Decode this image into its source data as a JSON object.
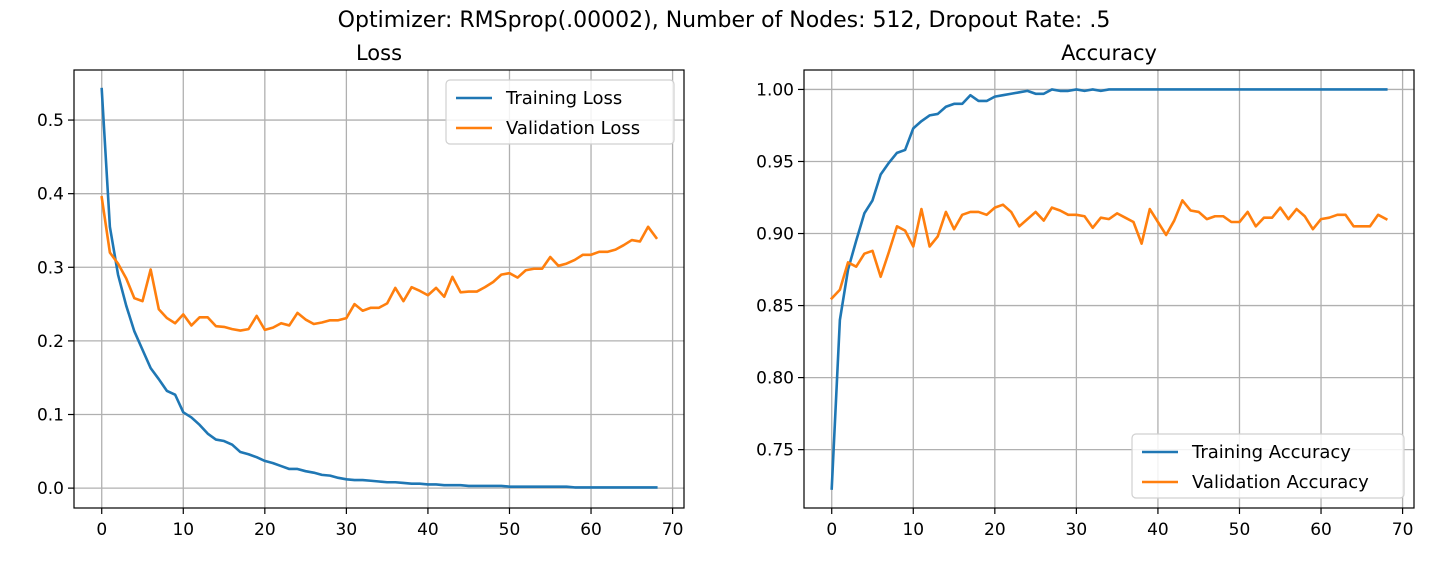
{
  "figure": {
    "suptitle": "Optimizer: RMSprop(.00002), Number of Nodes: 512, Dropout Rate: .5"
  },
  "chart_data": [
    {
      "type": "line",
      "title": "Loss",
      "xlabel": "",
      "ylabel": "",
      "xlim": [
        -3.4,
        71.4
      ],
      "ylim": [
        -0.027,
        0.568
      ],
      "xticks": [
        0,
        10,
        20,
        30,
        40,
        50,
        60,
        70
      ],
      "yticks": [
        0.0,
        0.1,
        0.2,
        0.3,
        0.4,
        0.5
      ],
      "ytick_labels": [
        "0.0",
        "0.1",
        "0.2",
        "0.3",
        "0.4",
        "0.5"
      ],
      "grid": true,
      "legend_position": "upper right",
      "series": [
        {
          "name": "Training Loss",
          "color": "#1f77b4",
          "values": [
            0.542,
            0.355,
            0.29,
            0.248,
            0.213,
            0.188,
            0.163,
            0.148,
            0.132,
            0.127,
            0.103,
            0.096,
            0.086,
            0.074,
            0.066,
            0.064,
            0.059,
            0.049,
            0.046,
            0.042,
            0.037,
            0.034,
            0.03,
            0.026,
            0.026,
            0.023,
            0.021,
            0.018,
            0.017,
            0.014,
            0.012,
            0.011,
            0.011,
            0.01,
            0.009,
            0.008,
            0.008,
            0.007,
            0.006,
            0.006,
            0.005,
            0.005,
            0.004,
            0.004,
            0.004,
            0.003,
            0.003,
            0.003,
            0.003,
            0.003,
            0.002,
            0.002,
            0.002,
            0.002,
            0.002,
            0.002,
            0.002,
            0.002,
            0.001,
            0.001,
            0.001,
            0.001,
            0.001,
            0.001,
            0.001,
            0.001,
            0.001,
            0.001,
            0.001
          ]
        },
        {
          "name": "Validation Loss",
          "color": "#ff7f0e",
          "values": [
            0.395,
            0.32,
            0.305,
            0.285,
            0.258,
            0.254,
            0.297,
            0.243,
            0.231,
            0.224,
            0.236,
            0.221,
            0.232,
            0.232,
            0.22,
            0.219,
            0.216,
            0.214,
            0.216,
            0.234,
            0.215,
            0.218,
            0.224,
            0.221,
            0.238,
            0.229,
            0.223,
            0.225,
            0.228,
            0.228,
            0.231,
            0.25,
            0.241,
            0.245,
            0.245,
            0.251,
            0.272,
            0.254,
            0.273,
            0.268,
            0.262,
            0.272,
            0.26,
            0.287,
            0.266,
            0.267,
            0.267,
            0.273,
            0.28,
            0.29,
            0.292,
            0.286,
            0.296,
            0.298,
            0.298,
            0.314,
            0.302,
            0.305,
            0.31,
            0.317,
            0.317,
            0.321,
            0.321,
            0.324,
            0.33,
            0.337,
            0.335,
            0.355,
            0.34
          ]
        }
      ]
    },
    {
      "type": "line",
      "title": "Accuracy",
      "xlabel": "",
      "ylabel": "",
      "xlim": [
        -3.4,
        71.4
      ],
      "ylim": [
        0.7095,
        1.0135
      ],
      "xticks": [
        0,
        10,
        20,
        30,
        40,
        50,
        60,
        70
      ],
      "yticks": [
        0.75,
        0.8,
        0.85,
        0.9,
        0.95,
        1.0
      ],
      "ytick_labels": [
        "0.75",
        "0.80",
        "0.85",
        "0.90",
        "0.95",
        "1.00"
      ],
      "grid": true,
      "legend_position": "lower right",
      "series": [
        {
          "name": "Training Accuracy",
          "color": "#1f77b4",
          "values": [
            0.723,
            0.84,
            0.875,
            0.895,
            0.914,
            0.923,
            0.941,
            0.949,
            0.956,
            0.958,
            0.973,
            0.978,
            0.982,
            0.983,
            0.988,
            0.99,
            0.99,
            0.996,
            0.992,
            0.992,
            0.995,
            0.996,
            0.997,
            0.998,
            0.999,
            0.997,
            0.997,
            1.0,
            0.999,
            0.999,
            1.0,
            0.999,
            1.0,
            0.999,
            1.0,
            1.0,
            1.0,
            1.0,
            1.0,
            1.0,
            1.0,
            1.0,
            1.0,
            1.0,
            1.0,
            1.0,
            1.0,
            1.0,
            1.0,
            1.0,
            1.0,
            1.0,
            1.0,
            1.0,
            1.0,
            1.0,
            1.0,
            1.0,
            1.0,
            1.0,
            1.0,
            1.0,
            1.0,
            1.0,
            1.0,
            1.0,
            1.0,
            1.0,
            1.0
          ]
        },
        {
          "name": "Validation Accuracy",
          "color": "#ff7f0e",
          "values": [
            0.855,
            0.861,
            0.88,
            0.877,
            0.886,
            0.888,
            0.87,
            0.887,
            0.905,
            0.902,
            0.891,
            0.917,
            0.891,
            0.898,
            0.915,
            0.903,
            0.913,
            0.915,
            0.915,
            0.913,
            0.918,
            0.92,
            0.915,
            0.905,
            0.91,
            0.915,
            0.909,
            0.918,
            0.916,
            0.913,
            0.913,
            0.912,
            0.904,
            0.911,
            0.91,
            0.914,
            0.911,
            0.908,
            0.893,
            0.917,
            0.908,
            0.899,
            0.909,
            0.923,
            0.916,
            0.915,
            0.91,
            0.912,
            0.912,
            0.908,
            0.908,
            0.915,
            0.905,
            0.911,
            0.911,
            0.918,
            0.91,
            0.917,
            0.912,
            0.903,
            0.91,
            0.911,
            0.913,
            0.913,
            0.905,
            0.905,
            0.905,
            0.913,
            0.91
          ]
        }
      ]
    }
  ]
}
